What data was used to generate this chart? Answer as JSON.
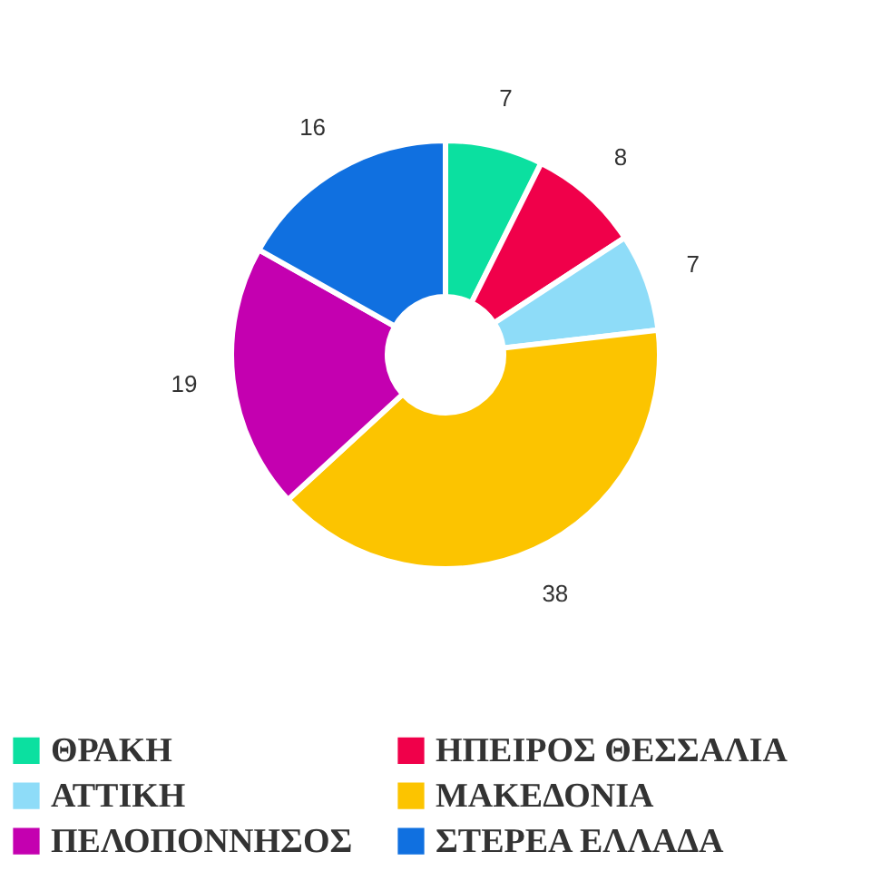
{
  "chart_data": {
    "type": "donut",
    "categories": [
      "ΘΡΑΚΗ",
      "ΗΠΕΙΡΟΣ ΘΕΣΣΑΛΙΑ",
      "ΑΤΤΙΚΗ",
      "ΜΑΚΕΔΟΝΙΑ",
      "ΠΕΛΟΠΟΝΝΗΣΟΣ",
      "ΣΤΕΡΕΑ ΕΛΛΑΔΑ"
    ],
    "values": [
      7,
      8,
      7,
      38,
      19,
      16
    ],
    "colors": [
      "#0be0a0",
      "#f0004a",
      "#8edcf8",
      "#fcc400",
      "#c400b0",
      "#1070e0"
    ],
    "data_labels": true,
    "legend": "bottom"
  }
}
